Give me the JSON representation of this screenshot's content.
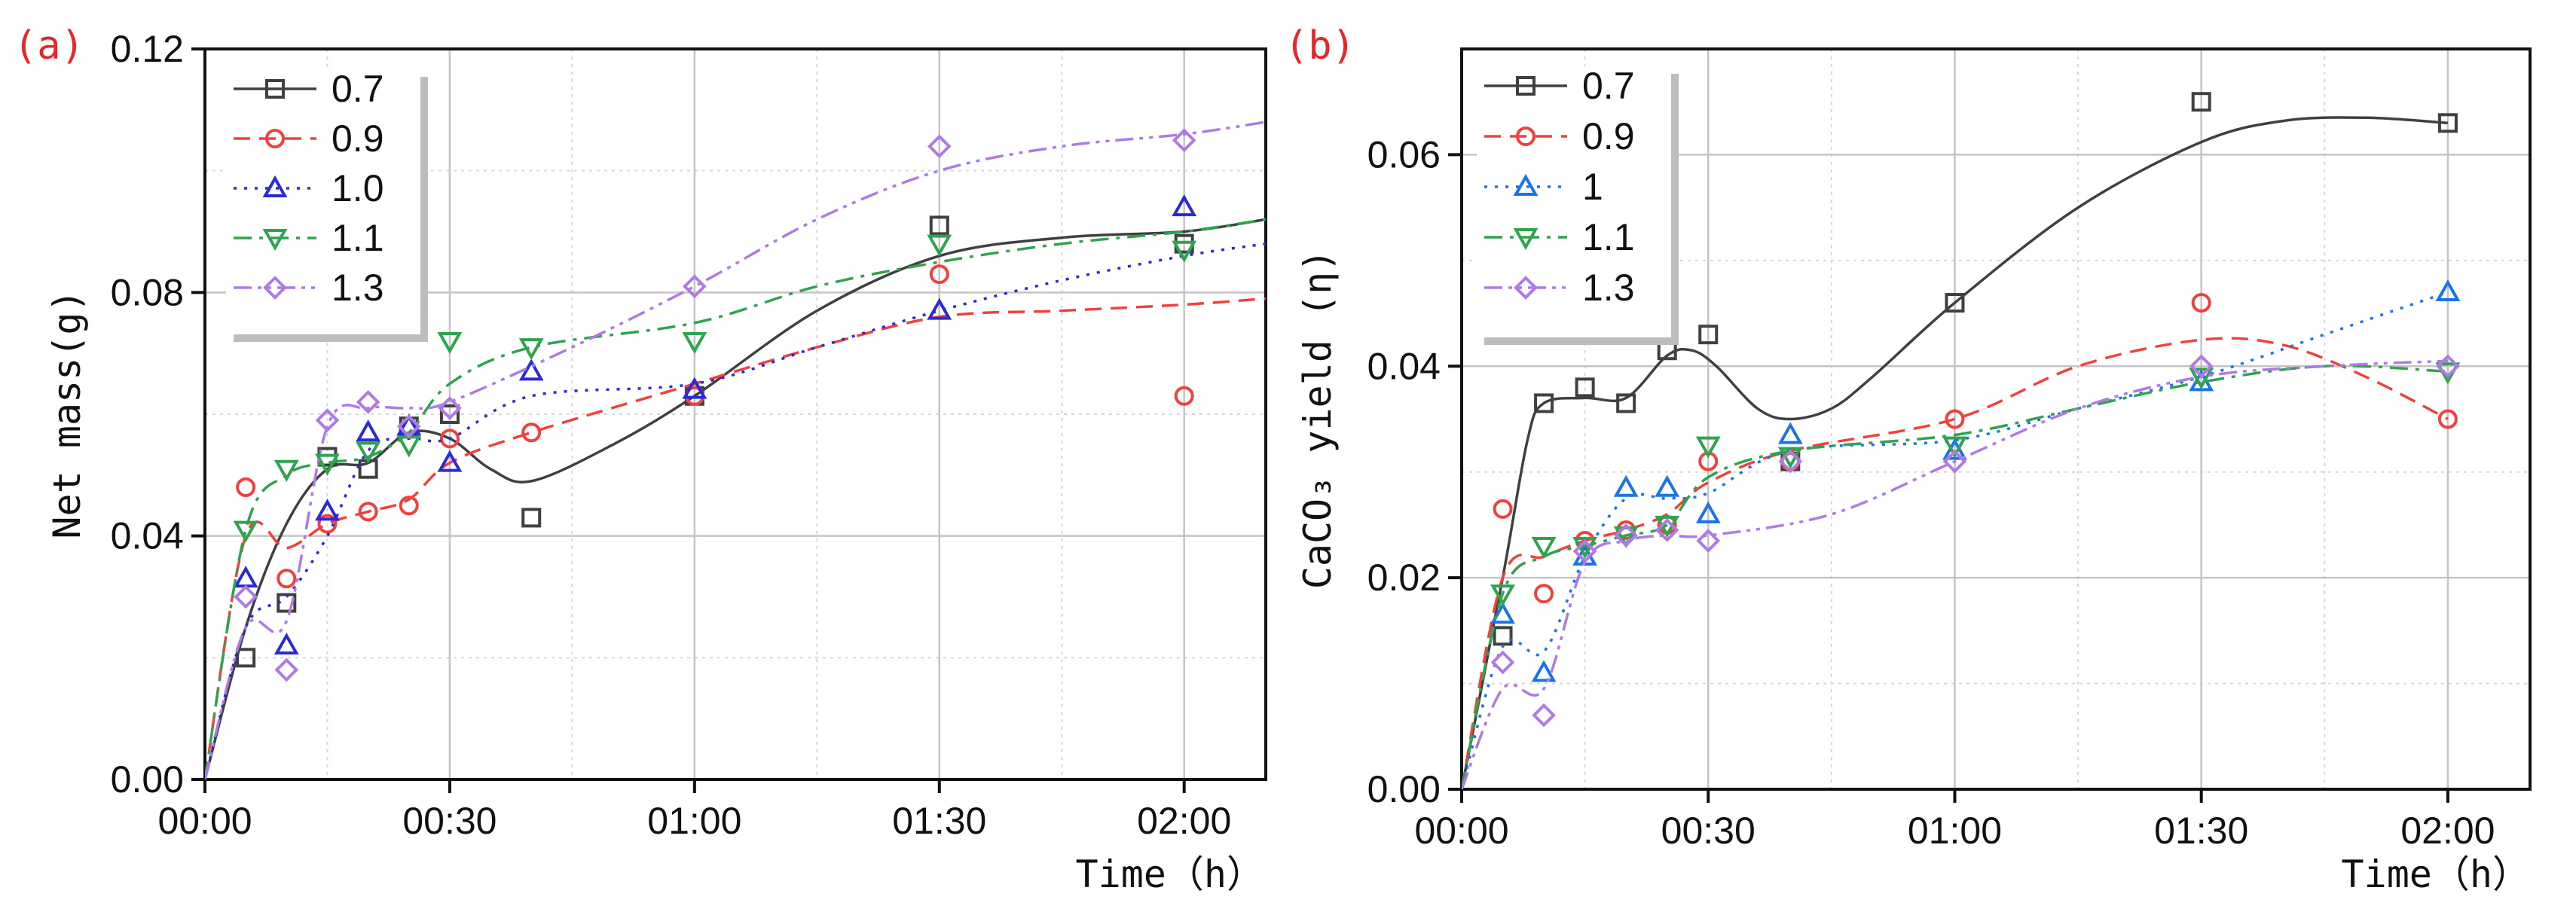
{
  "chart_data": [
    {
      "panel_label": "(a)",
      "type": "scatter",
      "xlabel": "Time（h）",
      "ylabel": "Net mass(g)",
      "x_tick_labels": [
        "00:00",
        "00:30",
        "01:00",
        "01:30",
        "02:00"
      ],
      "x_tick_values": [
        0,
        30,
        60,
        90,
        120
      ],
      "y_tick_labels": [
        "0.00",
        "0.04",
        "0.08",
        "0.12"
      ],
      "y_tick_values": [
        0,
        0.04,
        0.08,
        0.12
      ],
      "xlim": [
        0,
        130
      ],
      "ylim": [
        0,
        0.12
      ],
      "grid": true,
      "legend_position": "top-left",
      "series": [
        {
          "name": "0.7",
          "marker": "square",
          "color": "#404040",
          "dash": "solid",
          "x": [
            5,
            10,
            15,
            20,
            25,
            30,
            40,
            60,
            90,
            120
          ],
          "values": [
            0.02,
            0.029,
            0.053,
            0.051,
            0.058,
            0.06,
            0.043,
            0.063,
            0.091,
            0.088
          ],
          "curve": [
            [
              0,
              0
            ],
            [
              5,
              0.025
            ],
            [
              10,
              0.042
            ],
            [
              15,
              0.051
            ],
            [
              20,
              0.052
            ],
            [
              25,
              0.057
            ],
            [
              30,
              0.056
            ],
            [
              35,
              0.051
            ],
            [
              40,
              0.049
            ],
            [
              50,
              0.055
            ],
            [
              60,
              0.063
            ],
            [
              75,
              0.077
            ],
            [
              90,
              0.086
            ],
            [
              105,
              0.089
            ],
            [
              120,
              0.09
            ],
            [
              130,
              0.092
            ]
          ]
        },
        {
          "name": "0.9",
          "marker": "circle",
          "color": "#f0413c",
          "dash": "dash",
          "x": [
            5,
            10,
            15,
            20,
            25,
            30,
            40,
            60,
            90,
            120
          ],
          "values": [
            0.048,
            0.033,
            0.042,
            0.044,
            0.045,
            0.056,
            0.057,
            0.063,
            0.083,
            0.063
          ],
          "curve": [
            [
              0,
              0
            ],
            [
              5,
              0.04
            ],
            [
              10,
              0.038
            ],
            [
              15,
              0.042
            ],
            [
              20,
              0.044
            ],
            [
              25,
              0.046
            ],
            [
              30,
              0.052
            ],
            [
              40,
              0.057
            ],
            [
              60,
              0.065
            ],
            [
              75,
              0.071
            ],
            [
              90,
              0.076
            ],
            [
              105,
              0.077
            ],
            [
              120,
              0.078
            ],
            [
              130,
              0.079
            ]
          ]
        },
        {
          "name": "1.0",
          "marker": "triangle-up",
          "color": "#2a2ad6",
          "dash": "dot",
          "x": [
            5,
            10,
            15,
            20,
            25,
            30,
            40,
            60,
            90,
            120
          ],
          "values": [
            0.033,
            0.022,
            0.044,
            0.057,
            0.058,
            0.052,
            0.067,
            0.064,
            0.077,
            0.094
          ],
          "curve": [
            [
              0,
              0
            ],
            [
              5,
              0.025
            ],
            [
              10,
              0.03
            ],
            [
              15,
              0.04
            ],
            [
              20,
              0.054
            ],
            [
              25,
              0.056
            ],
            [
              30,
              0.056
            ],
            [
              40,
              0.063
            ],
            [
              60,
              0.065
            ],
            [
              75,
              0.071
            ],
            [
              90,
              0.077
            ],
            [
              105,
              0.082
            ],
            [
              120,
              0.086
            ],
            [
              130,
              0.088
            ]
          ]
        },
        {
          "name": "1.1",
          "marker": "triangle-down",
          "color": "#2ea44f",
          "dash": "dashdot",
          "x": [
            5,
            10,
            15,
            20,
            25,
            30,
            40,
            60,
            90,
            120
          ],
          "values": [
            0.041,
            0.051,
            0.052,
            0.054,
            0.055,
            0.072,
            0.071,
            0.072,
            0.088,
            0.087
          ],
          "curve": [
            [
              0,
              0
            ],
            [
              5,
              0.041
            ],
            [
              10,
              0.05
            ],
            [
              15,
              0.052
            ],
            [
              20,
              0.053
            ],
            [
              25,
              0.057
            ],
            [
              30,
              0.065
            ],
            [
              40,
              0.071
            ],
            [
              60,
              0.075
            ],
            [
              75,
              0.081
            ],
            [
              90,
              0.085
            ],
            [
              105,
              0.088
            ],
            [
              120,
              0.09
            ],
            [
              130,
              0.092
            ]
          ]
        },
        {
          "name": "1.3",
          "marker": "diamond",
          "color": "#b07ae6",
          "dash": "dashdotdot",
          "x": [
            5,
            10,
            15,
            20,
            25,
            30,
            60,
            90,
            120
          ],
          "values": [
            0.03,
            0.018,
            0.059,
            0.062,
            0.058,
            0.061,
            0.081,
            0.104,
            0.105
          ],
          "curve": [
            [
              0,
              0
            ],
            [
              5,
              0.025
            ],
            [
              10,
              0.026
            ],
            [
              15,
              0.058
            ],
            [
              20,
              0.061
            ],
            [
              25,
              0.061
            ],
            [
              30,
              0.062
            ],
            [
              45,
              0.071
            ],
            [
              60,
              0.081
            ],
            [
              75,
              0.092
            ],
            [
              90,
              0.1
            ],
            [
              105,
              0.104
            ],
            [
              120,
              0.106
            ],
            [
              130,
              0.108
            ]
          ]
        }
      ]
    },
    {
      "panel_label": "(b)",
      "type": "scatter",
      "xlabel": "Time（h）",
      "ylabel": "CaCO₃ yield (η)",
      "x_tick_labels": [
        "00:00",
        "00:30",
        "01:00",
        "01:30",
        "02:00"
      ],
      "x_tick_values": [
        0,
        30,
        60,
        90,
        120
      ],
      "y_tick_labels": [
        "0.00",
        "0.02",
        "0.04",
        "0.06"
      ],
      "y_tick_values": [
        0,
        0.02,
        0.04,
        0.06
      ],
      "xlim": [
        0,
        130
      ],
      "ylim": [
        0,
        0.07
      ],
      "grid": true,
      "legend_position": "top-left",
      "series": [
        {
          "name": "0.7",
          "marker": "square",
          "color": "#404040",
          "dash": "solid",
          "x": [
            5,
            10,
            15,
            20,
            25,
            30,
            40,
            60,
            90,
            120
          ],
          "values": [
            0.0145,
            0.0365,
            0.038,
            0.0365,
            0.0415,
            0.043,
            0.031,
            0.046,
            0.065,
            0.063
          ],
          "curve": [
            [
              0,
              0
            ],
            [
              5,
              0.02
            ],
            [
              8,
              0.033
            ],
            [
              10,
              0.0365
            ],
            [
              15,
              0.037
            ],
            [
              20,
              0.037
            ],
            [
              25,
              0.041
            ],
            [
              28,
              0.0415
            ],
            [
              31,
              0.04
            ],
            [
              36,
              0.036
            ],
            [
              40,
              0.035
            ],
            [
              45,
              0.036
            ],
            [
              50,
              0.039
            ],
            [
              60,
              0.046
            ],
            [
              75,
              0.055
            ],
            [
              90,
              0.0612
            ],
            [
              100,
              0.0632
            ],
            [
              110,
              0.0635
            ],
            [
              120,
              0.063
            ]
          ]
        },
        {
          "name": "0.9",
          "marker": "circle",
          "color": "#f0413c",
          "dash": "dash",
          "x": [
            5,
            10,
            15,
            20,
            25,
            30,
            40,
            60,
            90,
            120
          ],
          "values": [
            0.0265,
            0.0185,
            0.0235,
            0.0245,
            0.025,
            0.031,
            0.031,
            0.035,
            0.046,
            0.035
          ],
          "curve": [
            [
              0,
              0
            ],
            [
              5,
              0.02
            ],
            [
              10,
              0.022
            ],
            [
              15,
              0.0235
            ],
            [
              20,
              0.0245
            ],
            [
              25,
              0.026
            ],
            [
              30,
              0.029
            ],
            [
              40,
              0.032
            ],
            [
              60,
              0.035
            ],
            [
              75,
              0.04
            ],
            [
              90,
              0.0425
            ],
            [
              100,
              0.042
            ],
            [
              110,
              0.039
            ],
            [
              120,
              0.035
            ]
          ]
        },
        {
          "name": "1",
          "marker": "triangle-up",
          "color": "#1a73e8",
          "dash": "dot",
          "x": [
            5,
            10,
            15,
            20,
            25,
            30,
            40,
            60,
            90,
            120
          ],
          "values": [
            0.0165,
            0.011,
            0.022,
            0.0285,
            0.0285,
            0.026,
            0.0335,
            0.032,
            0.0385,
            0.047
          ],
          "curve": [
            [
              0,
              0
            ],
            [
              5,
              0.0135
            ],
            [
              10,
              0.013
            ],
            [
              15,
              0.022
            ],
            [
              20,
              0.0275
            ],
            [
              25,
              0.0275
            ],
            [
              30,
              0.028
            ],
            [
              40,
              0.032
            ],
            [
              60,
              0.033
            ],
            [
              75,
              0.036
            ],
            [
              90,
              0.039
            ],
            [
              105,
              0.043
            ],
            [
              120,
              0.047
            ]
          ]
        },
        {
          "name": "1.1",
          "marker": "triangle-down",
          "color": "#2ea44f",
          "dash": "dashdot",
          "x": [
            5,
            10,
            15,
            20,
            25,
            30,
            40,
            60,
            90,
            120
          ],
          "values": [
            0.0185,
            0.023,
            0.023,
            0.024,
            0.025,
            0.0325,
            0.0315,
            0.0325,
            0.039,
            0.0395
          ],
          "curve": [
            [
              0,
              0
            ],
            [
              5,
              0.0185
            ],
            [
              10,
              0.022
            ],
            [
              15,
              0.023
            ],
            [
              20,
              0.024
            ],
            [
              25,
              0.025
            ],
            [
              30,
              0.0295
            ],
            [
              40,
              0.032
            ],
            [
              60,
              0.0335
            ],
            [
              75,
              0.036
            ],
            [
              90,
              0.0385
            ],
            [
              105,
              0.04
            ],
            [
              120,
              0.0395
            ]
          ]
        },
        {
          "name": "1.3",
          "marker": "diamond",
          "color": "#b07ae6",
          "dash": "dashdotdot",
          "x": [
            5,
            10,
            15,
            20,
            25,
            30,
            40,
            60,
            90,
            120
          ],
          "values": [
            0.012,
            0.007,
            0.0225,
            0.024,
            0.0245,
            0.0235,
            0.031,
            0.031,
            0.04,
            0.04
          ],
          "curve": [
            [
              0,
              0
            ],
            [
              5,
              0.0095
            ],
            [
              10,
              0.0095
            ],
            [
              15,
              0.0215
            ],
            [
              20,
              0.0235
            ],
            [
              25,
              0.024
            ],
            [
              30,
              0.024
            ],
            [
              45,
              0.026
            ],
            [
              60,
              0.031
            ],
            [
              75,
              0.036
            ],
            [
              90,
              0.039
            ],
            [
              105,
              0.04
            ],
            [
              120,
              0.0405
            ]
          ]
        }
      ]
    }
  ]
}
